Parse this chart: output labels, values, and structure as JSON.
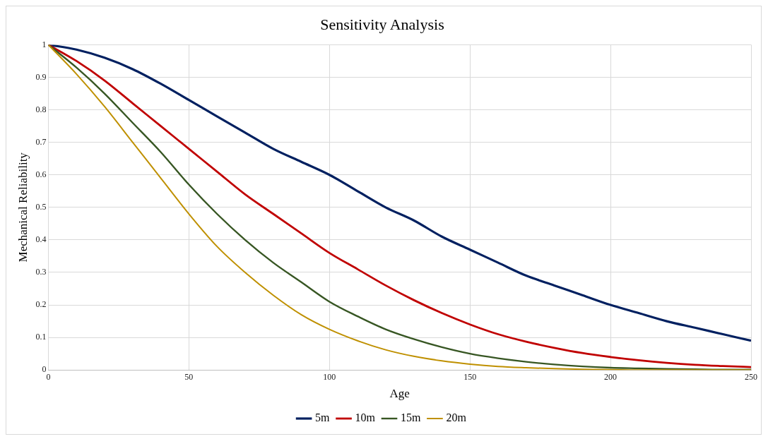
{
  "chart_data": {
    "type": "line",
    "title": "Sensitivity Analysis",
    "xlabel": "Age",
    "ylabel": "Mechanical Reliability",
    "x": [
      0,
      10,
      20,
      30,
      40,
      50,
      60,
      70,
      80,
      90,
      100,
      110,
      120,
      130,
      140,
      150,
      160,
      170,
      180,
      190,
      200,
      210,
      220,
      230,
      240,
      250
    ],
    "series": [
      {
        "name": "5m",
        "color": "#002060",
        "values": [
          1,
          0.985,
          0.96,
          0.925,
          0.88,
          0.83,
          0.78,
          0.73,
          0.68,
          0.64,
          0.6,
          0.55,
          0.5,
          0.46,
          0.41,
          0.37,
          0.33,
          0.29,
          0.26,
          0.23,
          0.2,
          0.175,
          0.15,
          0.13,
          0.11,
          0.09
        ]
      },
      {
        "name": "10m",
        "color": "#c00000",
        "values": [
          1,
          0.95,
          0.89,
          0.82,
          0.75,
          0.68,
          0.61,
          0.54,
          0.48,
          0.42,
          0.36,
          0.31,
          0.26,
          0.215,
          0.175,
          0.14,
          0.11,
          0.087,
          0.068,
          0.052,
          0.04,
          0.03,
          0.022,
          0.016,
          0.012,
          0.009
        ]
      },
      {
        "name": "15m",
        "color": "#375623",
        "values": [
          1,
          0.93,
          0.85,
          0.76,
          0.67,
          0.57,
          0.48,
          0.4,
          0.33,
          0.27,
          0.21,
          0.165,
          0.125,
          0.095,
          0.07,
          0.05,
          0.036,
          0.025,
          0.017,
          0.011,
          0.007,
          0.005,
          0.003,
          0.002,
          0.001,
          0.001
        ]
      },
      {
        "name": "20m",
        "color": "#bf9000",
        "values": [
          1,
          0.91,
          0.81,
          0.7,
          0.59,
          0.48,
          0.38,
          0.3,
          0.23,
          0.17,
          0.125,
          0.09,
          0.062,
          0.042,
          0.028,
          0.018,
          0.011,
          0.007,
          0.004,
          0.002,
          0.001,
          0,
          0,
          0,
          0,
          0
        ]
      }
    ],
    "xlim": [
      0,
      250
    ],
    "xticks": [
      0,
      50,
      100,
      150,
      200,
      250
    ],
    "ylim": [
      0,
      1
    ],
    "yticks": [
      0,
      0.1,
      0.2,
      0.3,
      0.4,
      0.5,
      0.6,
      0.7,
      0.8,
      0.9,
      1
    ],
    "grid": true,
    "legend": "bottom",
    "marker": "none",
    "line_style": "solid"
  }
}
